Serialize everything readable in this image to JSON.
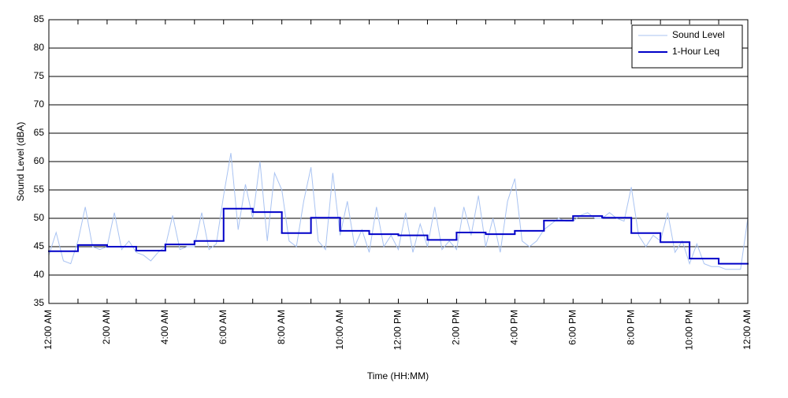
{
  "chart_data": {
    "type": "line",
    "xlabel": "Time (HH:MM)",
    "ylabel": "Sound Level (dBA)",
    "xlim": [
      0,
      24
    ],
    "ylim": [
      35,
      85
    ],
    "yticks": [
      35,
      40,
      45,
      50,
      55,
      60,
      65,
      70,
      75,
      80,
      85
    ],
    "xticks": [
      {
        "value": 0,
        "label": "12:00 AM"
      },
      {
        "value": 2,
        "label": "2:00 AM"
      },
      {
        "value": 4,
        "label": "4:00 AM"
      },
      {
        "value": 6,
        "label": "6:00 AM"
      },
      {
        "value": 8,
        "label": "8:00 AM"
      },
      {
        "value": 10,
        "label": "10:00 AM"
      },
      {
        "value": 12,
        "label": "12:00 PM"
      },
      {
        "value": 14,
        "label": "2:00 PM"
      },
      {
        "value": 16,
        "label": "4:00 PM"
      },
      {
        "value": 18,
        "label": "6:00 PM"
      },
      {
        "value": 20,
        "label": "8:00 PM"
      },
      {
        "value": 22,
        "label": "10:00 PM"
      },
      {
        "value": 24,
        "label": "12:00 AM"
      }
    ],
    "xminorticks": [
      1,
      3,
      5,
      7,
      9,
      11,
      13,
      15,
      17,
      19,
      21,
      23
    ],
    "grid": true,
    "legend": "upper right",
    "series": [
      {
        "name": "Sound Level",
        "color": "#a9c3f2",
        "width": 1,
        "x": [
          0,
          0.25,
          0.5,
          0.75,
          1,
          1.25,
          1.5,
          1.75,
          2,
          2.25,
          2.5,
          2.75,
          3,
          3.25,
          3.5,
          3.75,
          4,
          4.25,
          4.5,
          4.75,
          5,
          5.25,
          5.5,
          5.75,
          6,
          6.25,
          6.5,
          6.75,
          7,
          7.25,
          7.5,
          7.75,
          8,
          8.25,
          8.5,
          8.75,
          9,
          9.25,
          9.5,
          9.75,
          10,
          10.25,
          10.5,
          10.75,
          11,
          11.25,
          11.5,
          11.75,
          12,
          12.25,
          12.5,
          12.75,
          13,
          13.25,
          13.5,
          13.75,
          14,
          14.25,
          14.5,
          14.75,
          15,
          15.25,
          15.5,
          15.75,
          16,
          16.25,
          16.5,
          16.75,
          17,
          17.25,
          17.5,
          17.75,
          18,
          18.25,
          18.5,
          18.75,
          19,
          19.25,
          19.5,
          19.75,
          20,
          20.25,
          20.5,
          20.75,
          21,
          21.25,
          21.5,
          21.75,
          22,
          22.25,
          22.5,
          22.75,
          23,
          23.25,
          23.5,
          23.75,
          24
        ],
        "values": [
          43.5,
          47.5,
          42.5,
          42,
          46,
          52,
          45,
          44.5,
          45,
          51,
          44.5,
          46,
          44,
          43.5,
          42.5,
          44,
          45,
          50.5,
          44.5,
          45,
          45,
          51,
          44.5,
          45.5,
          54,
          61.5,
          48,
          56,
          50,
          60,
          46,
          58,
          55,
          46,
          45,
          53,
          59,
          46,
          44.5,
          58,
          47,
          53,
          45,
          48,
          44,
          52,
          45,
          47,
          44.5,
          51,
          44,
          49,
          45,
          52,
          44.5,
          46,
          44.5,
          52,
          47,
          54,
          45,
          50,
          44,
          53,
          57,
          46,
          45,
          46,
          48,
          49,
          50,
          49.5,
          49.5,
          50.5,
          51,
          50,
          50,
          51,
          50,
          49.5,
          55.5,
          47,
          45,
          47,
          46,
          51,
          44,
          46,
          42,
          45.5,
          42,
          41.5,
          41.5,
          41,
          41,
          41,
          50
        ]
      },
      {
        "name": "1-Hour Leq",
        "color": "#0000c8",
        "width": 2,
        "step": "post",
        "x": [
          0,
          1,
          2,
          3,
          4,
          5,
          6,
          7,
          8,
          9,
          10,
          11,
          12,
          13,
          14,
          15,
          16,
          17,
          18,
          19,
          20,
          21,
          22,
          23
        ],
        "values": [
          44.2,
          45.3,
          45.0,
          44.3,
          45.4,
          46.0,
          51.7,
          51.1,
          47.4,
          50.1,
          47.8,
          47.2,
          47.0,
          46.2,
          47.5,
          47.2,
          47.8,
          49.6,
          50.4,
          50.1,
          47.4,
          45.8,
          42.9,
          42.0
        ]
      }
    ]
  }
}
